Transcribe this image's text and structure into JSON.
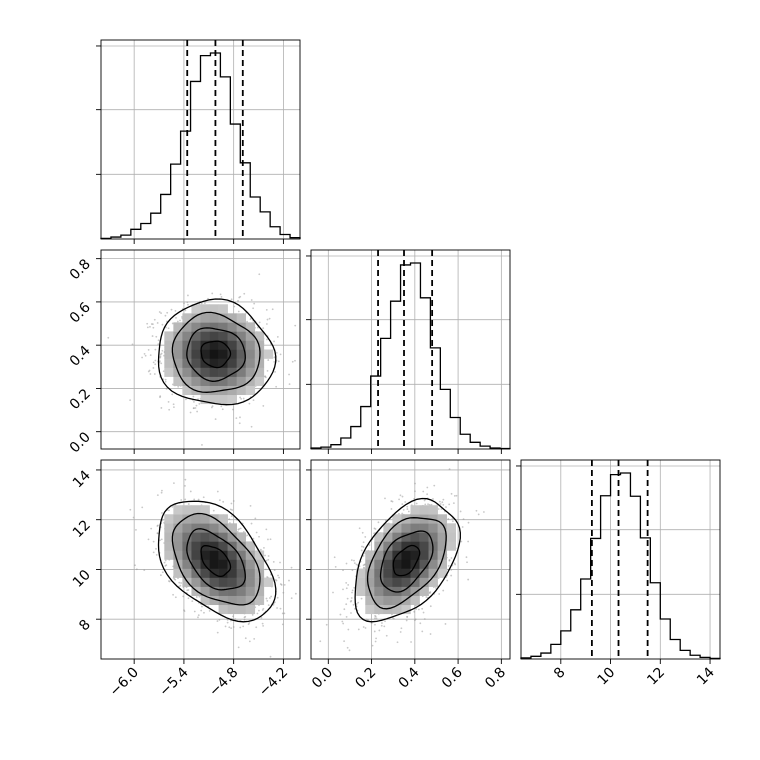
{
  "chart_data": {
    "type": "corner",
    "title": "",
    "colors": {
      "line": "#000000",
      "grid": "#b0b0b0",
      "points": "#9a9a9a",
      "density_dark": "#1a1a1a",
      "density_light": "#f4f4f4"
    },
    "parameters": [
      {
        "name": "",
        "range": [
          -6.4,
          -4.0
        ],
        "ticks": [
          -6.0,
          -5.4,
          -4.8,
          -4.2
        ],
        "tick_labels": [
          "−6.0",
          "−5.4",
          "−4.8",
          "−4.2"
        ],
        "mean": -5.02,
        "sd": 0.32,
        "quantiles": [
          -5.36,
          -5.02,
          -4.69
        ],
        "histogram": {
          "bin_edges": [
            -6.4,
            -6.28,
            -6.16,
            -6.04,
            -5.92,
            -5.8,
            -5.68,
            -5.56,
            -5.44,
            -5.32,
            -5.2,
            -5.08,
            -4.96,
            -4.84,
            -4.72,
            -4.6,
            -4.48,
            -4.36,
            -4.24,
            -4.12,
            -4.0
          ],
          "counts": [
            1,
            3,
            6,
            15,
            24,
            40,
            69,
            116,
            167,
            244,
            284,
            288,
            251,
            178,
            118,
            65,
            42,
            19,
            7,
            2
          ]
        }
      },
      {
        "name": "",
        "range": [
          -0.08,
          0.84
        ],
        "ticks": [
          0.0,
          0.2,
          0.4,
          0.6,
          0.8
        ],
        "tick_labels": [
          "0.0",
          "0.2",
          "0.4",
          "0.6",
          "0.8"
        ],
        "mean": 0.36,
        "sd": 0.11,
        "quantiles": [
          0.23,
          0.35,
          0.48
        ],
        "histogram": {
          "bin_edges": [
            -0.08,
            -0.034,
            0.012,
            0.058,
            0.104,
            0.15,
            0.196,
            0.242,
            0.288,
            0.334,
            0.38,
            0.426,
            0.472,
            0.518,
            0.564,
            0.61,
            0.656,
            0.702,
            0.748,
            0.794,
            0.84
          ],
          "counts": [
            2,
            4,
            9,
            23,
            47,
            89,
            153,
            232,
            310,
            386,
            390,
            317,
            212,
            125,
            66,
            31,
            14,
            6,
            2,
            1
          ]
        }
      },
      {
        "name": "",
        "range": [
          6.4,
          14.4
        ],
        "ticks": [
          8,
          10,
          12,
          14
        ],
        "tick_labels": [
          "8",
          "10",
          "12",
          "14"
        ],
        "mean": 10.35,
        "sd": 1.1,
        "quantiles": [
          9.25,
          10.32,
          11.49
        ],
        "histogram": {
          "bin_edges": [
            6.4,
            6.8,
            7.2,
            7.6,
            8.0,
            8.4,
            8.8,
            9.2,
            9.6,
            10.0,
            10.4,
            10.8,
            11.2,
            11.6,
            12.0,
            12.4,
            12.8,
            13.2,
            13.6,
            14.0,
            14.4
          ],
          "counts": [
            2,
            5,
            11,
            27,
            52,
            91,
            148,
            223,
            302,
            341,
            344,
            301,
            224,
            141,
            74,
            36,
            16,
            7,
            3,
            1
          ]
        }
      }
    ],
    "pairs": [
      {
        "x_param": 0,
        "y_param": 1,
        "correlation": -0.05
      },
      {
        "x_param": 0,
        "y_param": 2,
        "correlation": -0.45
      },
      {
        "x_param": 1,
        "y_param": 2,
        "correlation": 0.45
      }
    ],
    "contour_levels_sigma": [
      0.5,
      1.0,
      1.5,
      2.0
    ],
    "grid": true,
    "legend": "none"
  }
}
